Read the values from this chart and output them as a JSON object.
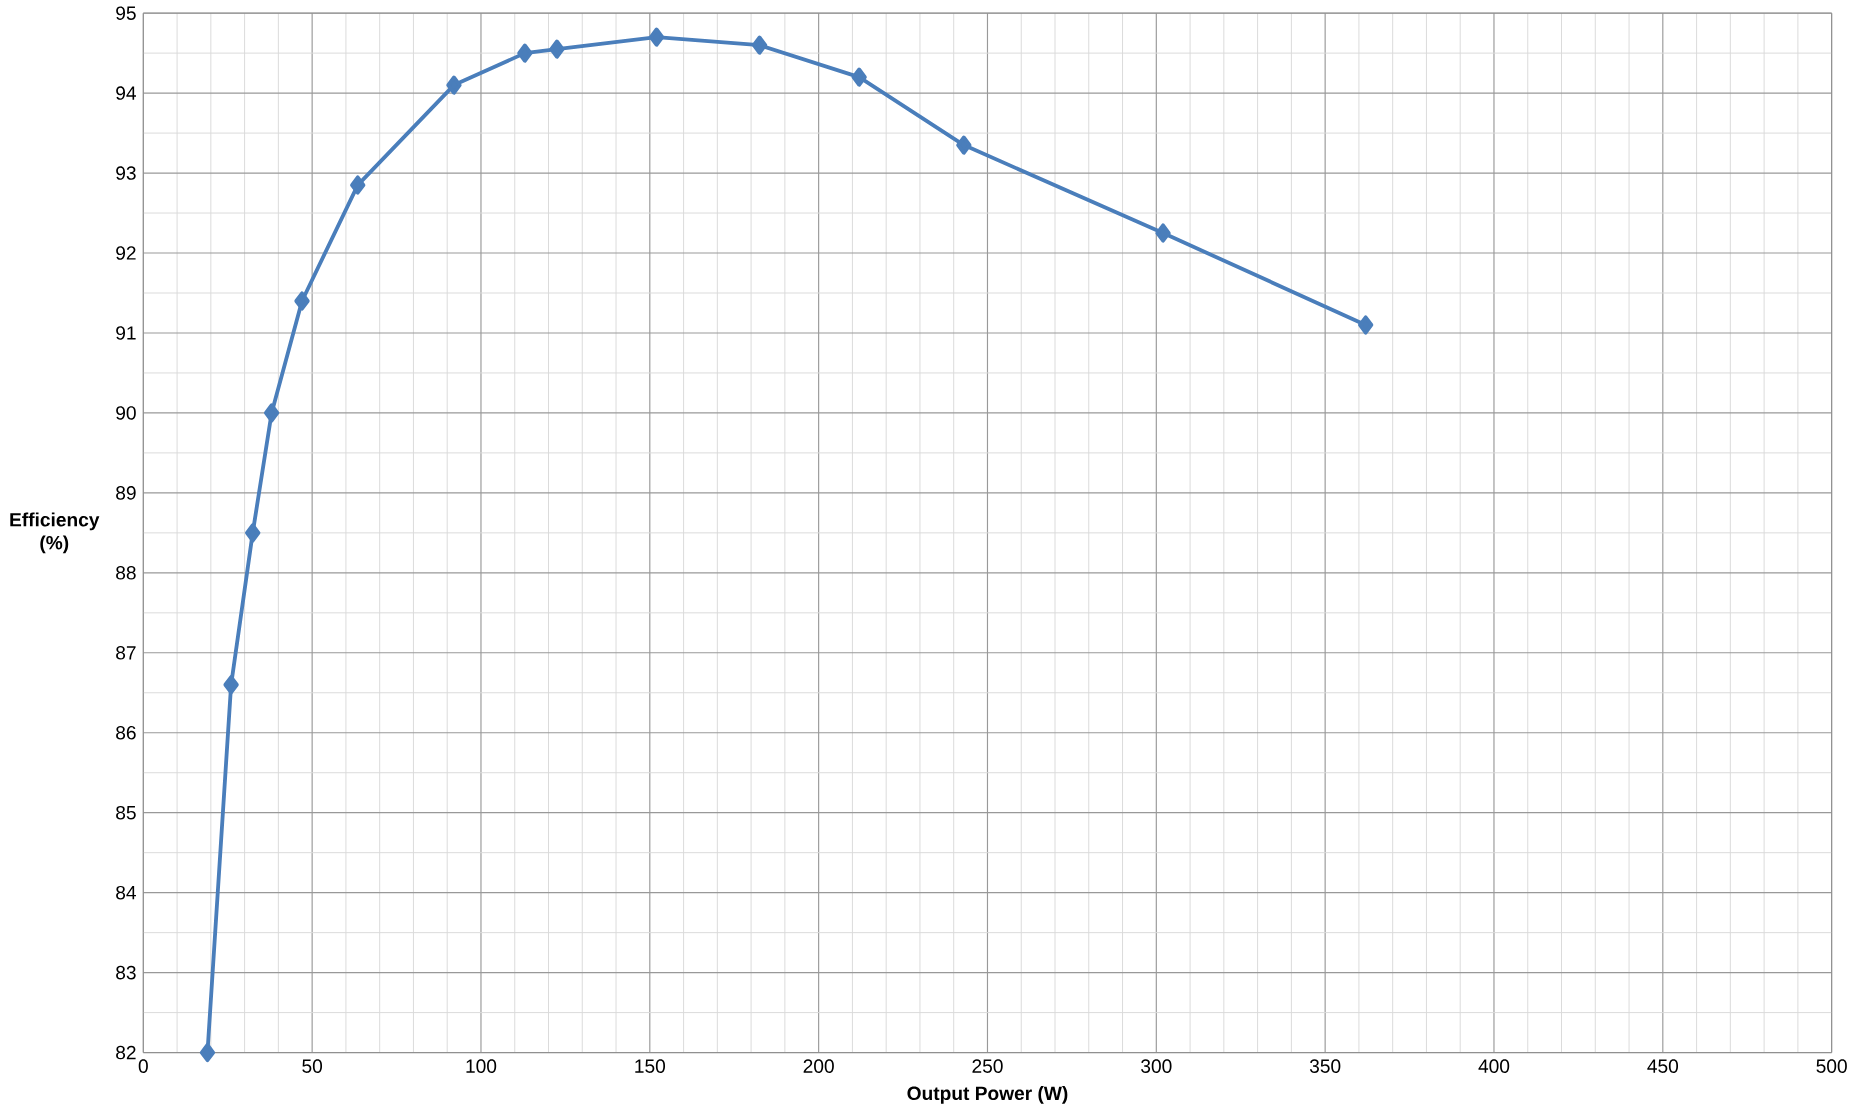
{
  "chart_data": {
    "type": "line",
    "xlabel": "Output Power (W)",
    "ylabel": "Efficiency (%)",
    "x": [
      19,
      26,
      32.4,
      38,
      47,
      63.5,
      92,
      113,
      122.5,
      152,
      182.5,
      212,
      243,
      302,
      362
    ],
    "series": [
      {
        "color": "#4a7ebb",
        "values": [
          82,
          86.6,
          88.5,
          90,
          91.4,
          92.85,
          94.1,
          94.5,
          94.55,
          94.7,
          94.6,
          94.2,
          93.35,
          92.25,
          91.1
        ]
      }
    ],
    "xlim": [
      0,
      500
    ],
    "xticks": [
      0,
      50,
      100,
      150,
      200,
      250,
      300,
      350,
      400,
      450,
      500
    ],
    "ylim": [
      82,
      95
    ],
    "yticks": [
      82,
      83,
      84,
      85,
      86,
      87,
      88,
      89,
      90,
      91,
      92,
      93,
      94,
      95
    ],
    "grid": true,
    "marker": "diamond",
    "line_style": "solid"
  }
}
